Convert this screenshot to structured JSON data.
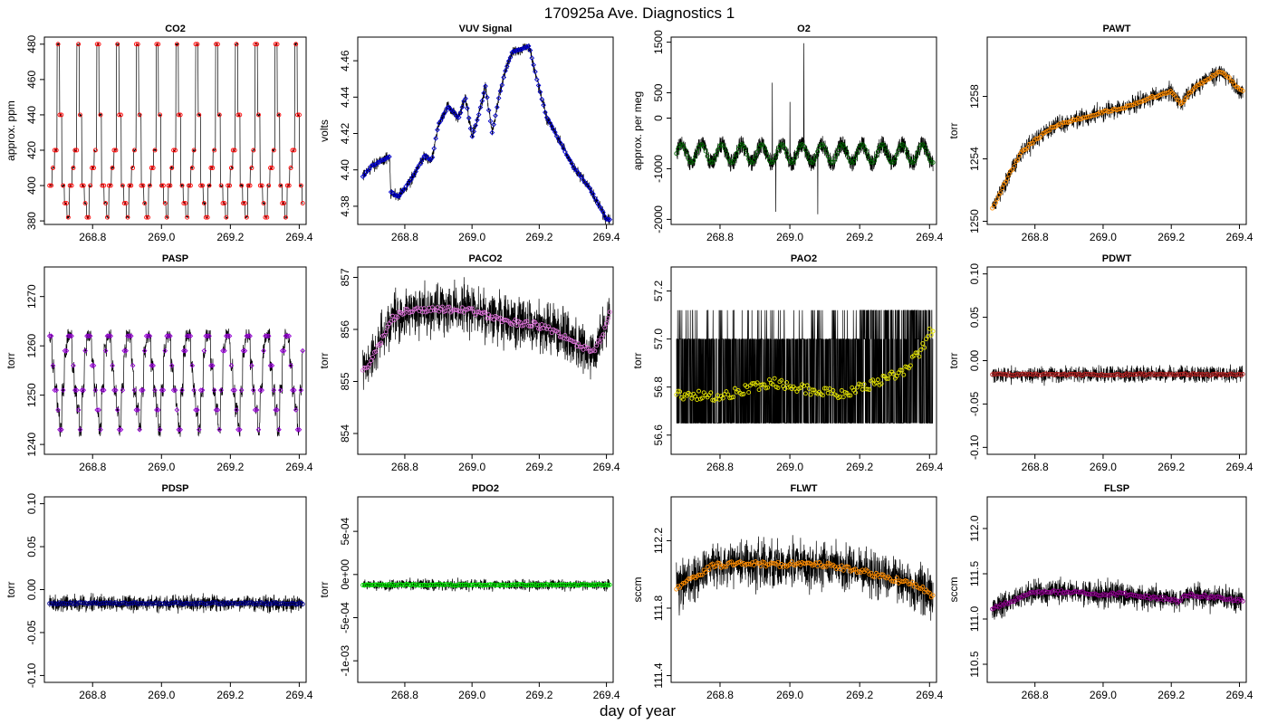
{
  "figure": {
    "title": "170925a   Ave. Diagnostics 1",
    "xlabel": "day of year"
  },
  "chart_data": [
    {
      "type": "line",
      "title": "CO2",
      "ylabel": "approx. ppm",
      "xlim": [
        268.66,
        269.42
      ],
      "ylim": [
        378,
        484
      ],
      "yticks": [
        380,
        400,
        420,
        440,
        460,
        480
      ],
      "ytick_labels": [
        "380",
        "400",
        "420",
        "440",
        "460",
        "480"
      ],
      "xticks": [
        268.8,
        269.0,
        269.2,
        269.4
      ],
      "xtick_labels": [
        "268.8",
        "269.0",
        "269.2",
        "269.4"
      ],
      "pattern": "step_cycle",
      "period": 0.0575,
      "phase": 0.0,
      "levels": [
        400,
        410,
        420,
        480,
        440,
        400,
        390,
        382
      ],
      "marker_color": "#ff0000",
      "marker": "circle"
    },
    {
      "type": "line",
      "title": "VUV Signal",
      "ylabel": "volts",
      "xlim": [
        268.66,
        269.42
      ],
      "ylim": [
        4.37,
        4.473
      ],
      "yticks": [
        4.38,
        4.4,
        4.42,
        4.44,
        4.46
      ],
      "ytick_labels": [
        "4.38",
        "4.40",
        "4.42",
        "4.44",
        "4.46"
      ],
      "xticks": [
        268.8,
        269.0,
        269.2,
        269.4
      ],
      "xtick_labels": [
        "268.8",
        "269.0",
        "269.2",
        "269.4"
      ],
      "pattern": "trend",
      "noise": 0.003,
      "knots": [
        [
          268.675,
          4.396
        ],
        [
          268.7,
          4.402
        ],
        [
          268.73,
          4.405
        ],
        [
          268.755,
          4.407
        ],
        [
          268.758,
          4.388
        ],
        [
          268.78,
          4.385
        ],
        [
          268.82,
          4.395
        ],
        [
          268.86,
          4.408
        ],
        [
          268.88,
          4.405
        ],
        [
          268.9,
          4.425
        ],
        [
          268.93,
          4.435
        ],
        [
          268.96,
          4.428
        ],
        [
          268.98,
          4.44
        ],
        [
          269.0,
          4.418
        ],
        [
          269.02,
          4.43
        ],
        [
          269.04,
          4.446
        ],
        [
          269.06,
          4.42
        ],
        [
          269.08,
          4.44
        ],
        [
          269.1,
          4.455
        ],
        [
          269.12,
          4.465
        ],
        [
          269.14,
          4.466
        ],
        [
          269.17,
          4.468
        ],
        [
          269.19,
          4.452
        ],
        [
          269.22,
          4.43
        ],
        [
          269.26,
          4.416
        ],
        [
          269.3,
          4.402
        ],
        [
          269.35,
          4.39
        ],
        [
          269.4,
          4.373
        ]
      ],
      "marker_color": "#0000cd",
      "marker": "diamond"
    },
    {
      "type": "line",
      "title": "O2",
      "ylabel": "approx. per meg",
      "xlim": [
        268.66,
        269.42
      ],
      "ylim": [
        -2100,
        1600
      ],
      "yticks": [
        -2000,
        -1000,
        0,
        500,
        1500
      ],
      "ytick_labels": [
        "-2000",
        "-1000",
        "0",
        "500",
        "1500"
      ],
      "xticks": [
        268.8,
        269.0,
        269.2,
        269.4
      ],
      "xtick_labels": [
        "268.8",
        "269.0",
        "269.2",
        "269.4"
      ],
      "pattern": "noise_cycle",
      "center": -700,
      "amp": 180,
      "noise": 350,
      "period": 0.0575,
      "spikes": [
        [
          268.95,
          700
        ],
        [
          269.0,
          320
        ],
        [
          269.04,
          1480
        ],
        [
          269.08,
          -1900
        ],
        [
          268.96,
          -1850
        ]
      ],
      "marker_color": "#006400",
      "marker": "circle"
    },
    {
      "type": "line",
      "title": "PAWT",
      "ylabel": "torr",
      "xlim": [
        268.66,
        269.42
      ],
      "ylim": [
        1249.8,
        1261.8
      ],
      "yticks": [
        1250,
        1254,
        1258
      ],
      "ytick_labels": [
        "1250",
        "1254",
        "1258"
      ],
      "xticks": [
        268.8,
        269.0,
        269.2,
        269.4
      ],
      "xtick_labels": [
        "268.8",
        "269.0",
        "269.2",
        "269.4"
      ],
      "pattern": "trend",
      "noise": 0.55,
      "knots": [
        [
          268.675,
          1250.8
        ],
        [
          268.72,
          1252.8
        ],
        [
          268.76,
          1254.4
        ],
        [
          268.8,
          1255.2
        ],
        [
          268.85,
          1256.0
        ],
        [
          268.9,
          1256.4
        ],
        [
          268.95,
          1256.7
        ],
        [
          269.0,
          1257.0
        ],
        [
          269.05,
          1257.2
        ],
        [
          269.1,
          1257.6
        ],
        [
          269.15,
          1258.0
        ],
        [
          269.2,
          1258.3
        ],
        [
          269.23,
          1257.5
        ],
        [
          269.26,
          1258.4
        ],
        [
          269.3,
          1259.0
        ],
        [
          269.34,
          1259.6
        ],
        [
          269.37,
          1259.2
        ],
        [
          269.39,
          1258.6
        ],
        [
          269.41,
          1258.3
        ]
      ],
      "marker_color": "#ff8c00",
      "marker": "circle"
    },
    {
      "type": "line",
      "title": "PASP",
      "ylabel": "torr",
      "xlim": [
        268.66,
        269.42
      ],
      "ylim": [
        1238,
        1276
      ],
      "yticks": [
        1240,
        1250,
        1260,
        1270
      ],
      "ytick_labels": [
        "1240",
        "1250",
        "1260",
        "1270"
      ],
      "xticks": [
        268.8,
        269.0,
        269.2,
        269.4
      ],
      "xtick_labels": [
        "268.8",
        "269.0",
        "269.2",
        "269.4"
      ],
      "pattern": "step_cycle",
      "period": 0.0575,
      "phase": 0.0,
      "levels": [
        1262,
        1256,
        1251,
        1247,
        1243,
        1251,
        1259,
        1262
      ],
      "noise": 1.5,
      "marker_color": "#9400d3",
      "marker": "diamond"
    },
    {
      "type": "line",
      "title": "PACO2",
      "ylabel": "torr",
      "xlim": [
        268.66,
        269.42
      ],
      "ylim": [
        853.6,
        857.2
      ],
      "yticks": [
        854,
        855,
        856,
        857
      ],
      "ytick_labels": [
        "854",
        "855",
        "856",
        "857"
      ],
      "xticks": [
        268.8,
        269.0,
        269.2,
        269.4
      ],
      "xtick_labels": [
        "268.8",
        "269.0",
        "269.2",
        "269.4"
      ],
      "pattern": "trend",
      "noise": 0.45,
      "knots": [
        [
          268.675,
          855.2
        ],
        [
          268.7,
          855.4
        ],
        [
          268.73,
          855.8
        ],
        [
          268.76,
          856.2
        ],
        [
          268.8,
          856.35
        ],
        [
          268.9,
          856.4
        ],
        [
          269.0,
          856.35
        ],
        [
          269.05,
          856.25
        ],
        [
          269.1,
          856.15
        ],
        [
          269.18,
          856.1
        ],
        [
          269.25,
          855.95
        ],
        [
          269.32,
          855.7
        ],
        [
          269.36,
          855.55
        ],
        [
          269.39,
          855.9
        ],
        [
          269.41,
          856.3
        ]
      ],
      "marker_color": "#da70d6",
      "marker": "circle"
    },
    {
      "type": "line",
      "title": "PAO2",
      "ylabel": "torr",
      "xlim": [
        268.66,
        269.42
      ],
      "ylim": [
        56.52,
        57.3
      ],
      "yticks": [
        56.6,
        56.8,
        57.0,
        57.2
      ],
      "ytick_labels": [
        "56.6",
        "56.8",
        "57.0",
        "57.2"
      ],
      "xticks": [
        268.8,
        269.0,
        269.2,
        269.4
      ],
      "xtick_labels": [
        "268.8",
        "269.0",
        "269.2",
        "269.4"
      ],
      "pattern": "quantized",
      "band": [
        56.65,
        57.0
      ],
      "band_hi": 57.12,
      "noise": 0.22,
      "knots": [
        [
          268.675,
          56.77
        ],
        [
          268.8,
          56.76
        ],
        [
          268.9,
          56.8
        ],
        [
          268.95,
          56.82
        ],
        [
          269.05,
          56.79
        ],
        [
          269.15,
          56.77
        ],
        [
          269.25,
          56.82
        ],
        [
          269.32,
          56.86
        ],
        [
          269.37,
          56.94
        ],
        [
          269.41,
          57.05
        ]
      ],
      "marker_color": "#e6e600",
      "marker": "circle"
    },
    {
      "type": "line",
      "title": "PDWT",
      "ylabel": "torr",
      "xlim": [
        268.66,
        269.42
      ],
      "ylim": [
        -0.108,
        0.108
      ],
      "yticks": [
        -0.1,
        -0.05,
        0.0,
        0.05,
        0.1
      ],
      "ytick_labels": [
        "-0.10",
        "-0.05",
        "0.00",
        "0.05",
        "0.10"
      ],
      "xticks": [
        268.8,
        269.0,
        269.2,
        269.4
      ],
      "xtick_labels": [
        "268.8",
        "269.0",
        "269.2",
        "269.4"
      ],
      "pattern": "trend",
      "noise": 0.009,
      "knots": [
        [
          268.675,
          -0.016
        ],
        [
          269.41,
          -0.016
        ]
      ],
      "marker_color": "#b22222",
      "marker": "circle"
    },
    {
      "type": "line",
      "title": "PDSP",
      "ylabel": "torr",
      "xlim": [
        268.66,
        269.42
      ],
      "ylim": [
        -0.108,
        0.108
      ],
      "yticks": [
        -0.1,
        -0.05,
        0.0,
        0.05,
        0.1
      ],
      "ytick_labels": [
        "-0.10",
        "-0.05",
        "0.00",
        "0.05",
        "0.10"
      ],
      "xticks": [
        268.8,
        269.0,
        269.2,
        269.4
      ],
      "xtick_labels": [
        "268.8",
        "269.0",
        "269.2",
        "269.4"
      ],
      "pattern": "trend",
      "noise": 0.009,
      "knots": [
        [
          268.675,
          -0.016
        ],
        [
          269.41,
          -0.016
        ]
      ],
      "marker_color": "#00008b",
      "marker": "circle"
    },
    {
      "type": "line",
      "title": "PDO2",
      "ylabel": "torr",
      "xlim": [
        268.66,
        269.42
      ],
      "ylim": [
        -0.00125,
        0.0009
      ],
      "yticks": [
        -0.001,
        -0.0005,
        0.0,
        0.0005
      ],
      "ytick_labels": [
        "-1e-03",
        "-5e-04",
        "0e+00",
        "5e-04"
      ],
      "xticks": [
        268.8,
        269.0,
        269.2,
        269.4
      ],
      "xtick_labels": [
        "268.8",
        "269.0",
        "269.2",
        "269.4"
      ],
      "pattern": "trend",
      "noise": 6e-05,
      "knots": [
        [
          268.675,
          -0.00012
        ],
        [
          269.41,
          -0.00012
        ]
      ],
      "marker_color": "#00e000",
      "marker": "circle"
    },
    {
      "type": "line",
      "title": "FLWT",
      "ylabel": "sccm",
      "xlim": [
        268.66,
        269.42
      ],
      "ylim": [
        111.36,
        112.46
      ],
      "yticks": [
        111.4,
        111.8,
        112.2
      ],
      "ytick_labels": [
        "111.4",
        "111.8",
        "112.2"
      ],
      "xticks": [
        268.8,
        269.0,
        269.2,
        269.4
      ],
      "xtick_labels": [
        "268.8",
        "269.0",
        "269.2",
        "269.4"
      ],
      "pattern": "trend",
      "noise": 0.13,
      "knots": [
        [
          268.675,
          111.92
        ],
        [
          268.72,
          111.97
        ],
        [
          268.78,
          112.05
        ],
        [
          268.85,
          112.07
        ],
        [
          268.95,
          112.06
        ],
        [
          269.05,
          112.06
        ],
        [
          269.12,
          112.05
        ],
        [
          269.2,
          112.02
        ],
        [
          269.3,
          111.97
        ],
        [
          269.37,
          111.93
        ],
        [
          269.41,
          111.86
        ]
      ],
      "marker_color": "#ff8c00",
      "marker": "circle"
    },
    {
      "type": "line",
      "title": "FLSP",
      "ylabel": "sccm",
      "xlim": [
        268.66,
        269.42
      ],
      "ylim": [
        110.3,
        112.35
      ],
      "yticks": [
        110.5,
        111.0,
        111.5,
        112.0
      ],
      "ytick_labels": [
        "110.5",
        "111.0",
        "111.5",
        "112.0"
      ],
      "xticks": [
        268.8,
        269.0,
        269.2,
        269.4
      ],
      "xtick_labels": [
        "268.8",
        "269.0",
        "269.2",
        "269.4"
      ],
      "pattern": "trend",
      "noise": 0.13,
      "knots": [
        [
          268.675,
          111.12
        ],
        [
          268.72,
          111.18
        ],
        [
          268.8,
          111.3
        ],
        [
          268.9,
          111.3
        ],
        [
          269.0,
          111.27
        ],
        [
          269.05,
          111.28
        ],
        [
          269.1,
          111.25
        ],
        [
          269.2,
          111.22
        ],
        [
          269.22,
          111.18
        ],
        [
          269.24,
          111.27
        ],
        [
          269.3,
          111.25
        ],
        [
          269.41,
          111.2
        ]
      ],
      "marker_color": "#8b008b",
      "marker": "circle"
    }
  ]
}
